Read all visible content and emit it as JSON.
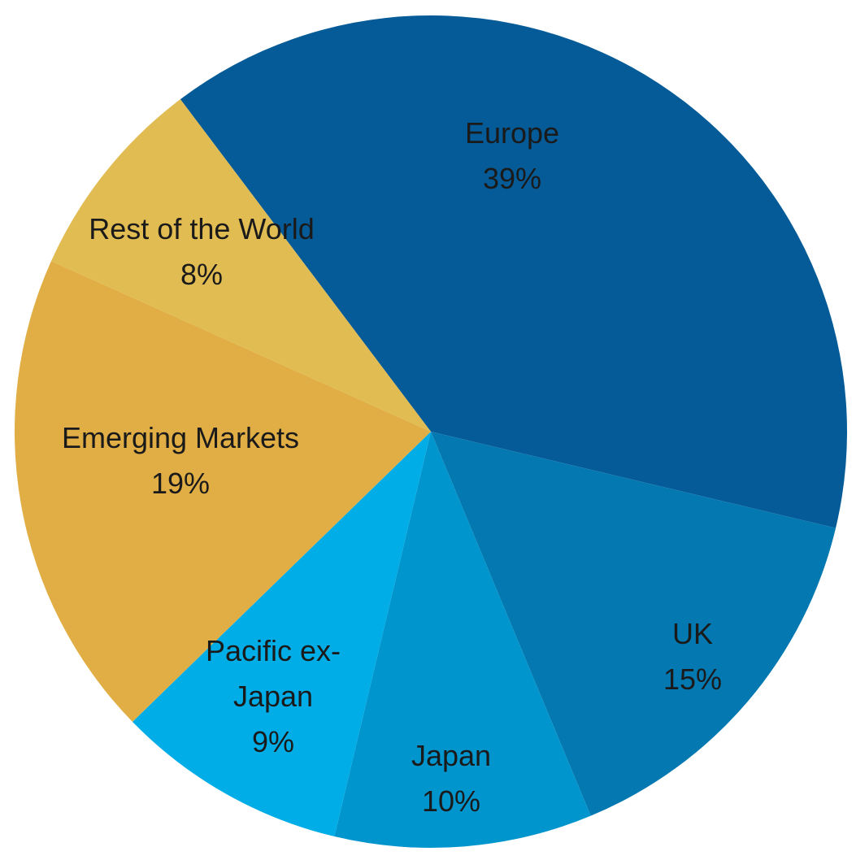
{
  "chart_data": {
    "type": "pie",
    "title": "",
    "start_angle_deg": -37,
    "slices": [
      {
        "label": "Europe",
        "label_lines": [
          "Europe"
        ],
        "value": 39,
        "value_label": "39%",
        "color": "#055b97"
      },
      {
        "label": "UK",
        "label_lines": [
          "UK"
        ],
        "value": 15,
        "value_label": "15%",
        "color": "#0478b0"
      },
      {
        "label": "Japan",
        "label_lines": [
          "Japan"
        ],
        "value": 10,
        "value_label": "10%",
        "color": "#0195cd"
      },
      {
        "label": "Pacific ex-Japan",
        "label_lines": [
          "Pacific ex-",
          "Japan"
        ],
        "value": 9,
        "value_label": "9%",
        "color": "#00ade6"
      },
      {
        "label": "Emerging Markets",
        "label_lines": [
          "Emerging Markets"
        ],
        "value": 19,
        "value_label": "19%",
        "color": "#e1ae45"
      },
      {
        "label": "Rest of the World",
        "label_lines": [
          "Rest of the World"
        ],
        "value": 8,
        "value_label": "8%",
        "color": "#e1bc52"
      }
    ]
  }
}
